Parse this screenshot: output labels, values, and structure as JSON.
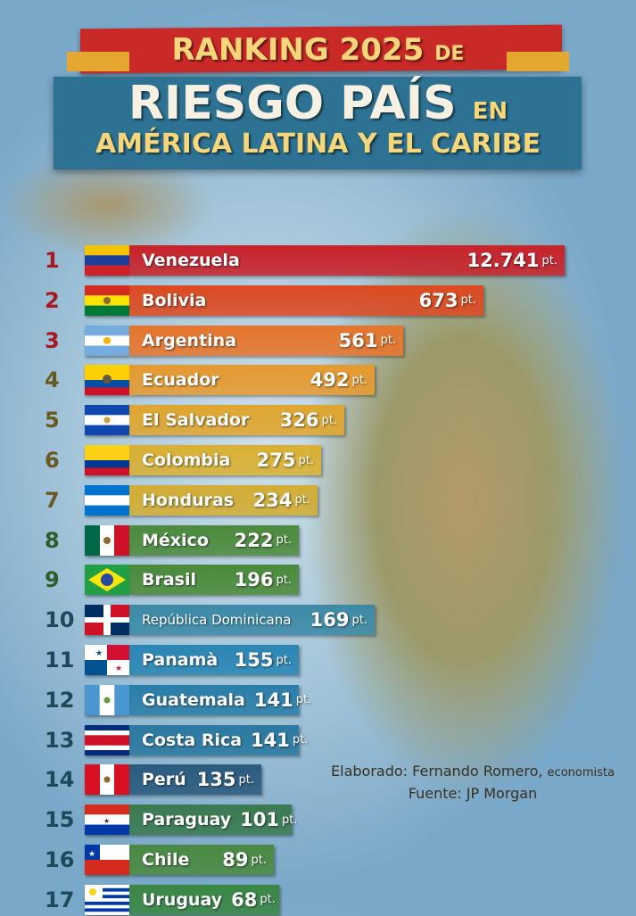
{
  "title": {
    "line1": "RANKING 2025",
    "line1_small": "DE",
    "line2": "RIESGO PAÍS",
    "line2_small": "EN",
    "line3": "AMÉRICA LATINA Y EL CARIBE"
  },
  "credits": {
    "author_label": "Elaborado: Fernando Romero,",
    "author_role": "economista",
    "source": "Fuente: JP Morgan"
  },
  "chart_data": {
    "type": "bar",
    "orientation": "horizontal",
    "unit": "pt.",
    "categories": [
      "Venezuela",
      "Bolivia",
      "Argentina",
      "Ecuador",
      "El Salvador",
      "Colombia",
      "Honduras",
      "México",
      "Brasil",
      "República Dominicana",
      "Panamà",
      "Guatemala",
      "Costa Rica",
      "Perú",
      "Paraguay",
      "Chile",
      "Uruguay"
    ],
    "ranks": [
      "1",
      "2",
      "3",
      "4",
      "5",
      "6",
      "7",
      "8",
      "9",
      "10",
      "11",
      "12",
      "13",
      "14",
      "15",
      "16",
      "17"
    ],
    "value_labels": [
      "12.741",
      "673",
      "561",
      "492",
      "326",
      "275",
      "234",
      "222",
      "196",
      "169",
      "155",
      "141",
      "141",
      "135",
      "101",
      "89",
      "68"
    ],
    "values": [
      12741,
      673,
      561,
      492,
      326,
      275,
      234,
      222,
      196,
      169,
      155,
      141,
      141,
      135,
      101,
      89,
      68
    ],
    "bar_colors": [
      "#c8232a",
      "#dc4a22",
      "#e6752c",
      "#e59a30",
      "#dfa62e",
      "#d9b032",
      "#d2ad34",
      "#4b8a3c",
      "#4a8a3a",
      "#3c8aa6",
      "#2a86b4",
      "#2a7ea8",
      "#2a78a0",
      "#2a5a7e",
      "#3a7a50",
      "#4a8a42",
      "#3a8744"
    ],
    "rank_colors": [
      "#a8181e",
      "#a8181e",
      "#a8181e",
      "#6a5a20",
      "#6a5a20",
      "#6a5a20",
      "#6a5a20",
      "#2e5e2a",
      "#2e5e2a",
      "#1d4a5a",
      "#1d4a5a",
      "#1d4a5a",
      "#1d4a5a",
      "#1d4a5a",
      "#1d4a5a",
      "#1d4a5a",
      "#1d4a5a"
    ]
  }
}
